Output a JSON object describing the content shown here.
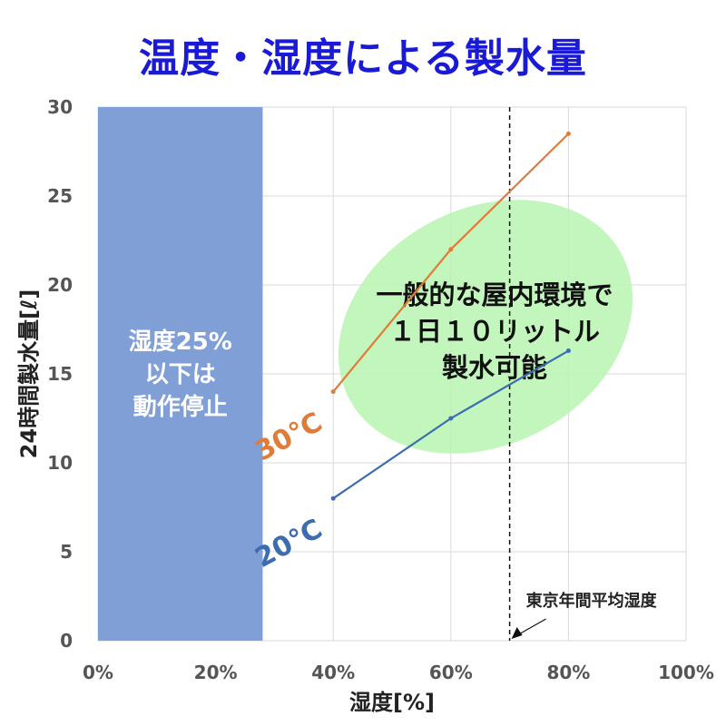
{
  "chart_data": {
    "type": "line",
    "title": "温度・湿度による製水量",
    "xlabel": "湿度[%]",
    "ylabel": "24時間製水量[ℓ]",
    "xlim": [
      0,
      100
    ],
    "ylim": [
      0,
      30
    ],
    "x_ticks": [
      "0%",
      "20%",
      "40%",
      "60%",
      "80%",
      "100%"
    ],
    "x_tick_values": [
      0,
      20,
      40,
      60,
      80,
      100
    ],
    "y_ticks": [
      "0",
      "5",
      "10",
      "15",
      "20",
      "25",
      "30"
    ],
    "y_tick_values": [
      0,
      5,
      10,
      15,
      20,
      25,
      30
    ],
    "grid": true,
    "series": [
      {
        "name": "30℃",
        "color": "#e07b39",
        "x": [
          40,
          60,
          80
        ],
        "y": [
          14,
          22,
          28.5
        ]
      },
      {
        "name": "20℃",
        "color": "#3d6db0",
        "x": [
          40,
          60,
          80
        ],
        "y": [
          8,
          12.5,
          16.3
        ]
      }
    ],
    "shaded_region": {
      "x_range": [
        0,
        28
      ],
      "color": "#7f9fd6",
      "lines": [
        "湿度25%",
        "以下は",
        "動作停止"
      ]
    },
    "ellipse_annotation": {
      "color": "#b8f5b0",
      "lines": [
        "一般的な屋内環境で",
        "１日１０リットル",
        "製水可能"
      ]
    },
    "reference_line": {
      "x": 70,
      "label": "東京年間平均湿度"
    }
  }
}
